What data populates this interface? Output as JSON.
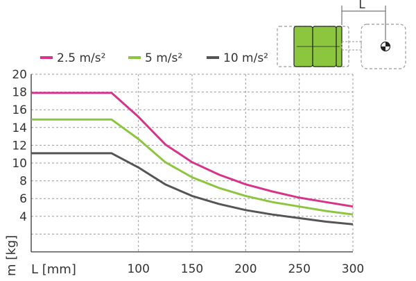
{
  "chart_data": {
    "type": "line",
    "title": "",
    "xlabel": "L [mm]",
    "ylabel": "m [kg]",
    "xlim": [
      0,
      300
    ],
    "ylim": [
      0,
      20
    ],
    "x_ticks": [
      100,
      150,
      200,
      250,
      300
    ],
    "y_ticks": [
      4,
      6,
      8,
      10,
      12,
      14,
      16,
      18,
      20
    ],
    "grid": true,
    "legend_position": "top-left",
    "series": [
      {
        "name": "2.5 m/s²",
        "color": "#d6338a",
        "x": [
          0,
          75,
          100,
          125,
          150,
          175,
          200,
          225,
          250,
          275,
          300
        ],
        "y": [
          17.9,
          17.9,
          15.2,
          12.1,
          10.1,
          8.7,
          7.6,
          6.8,
          6.1,
          5.6,
          5.1
        ]
      },
      {
        "name": "5 m/s²",
        "color": "#8cc63f",
        "x": [
          0,
          75,
          100,
          125,
          150,
          175,
          200,
          225,
          250,
          275,
          300
        ],
        "y": [
          14.9,
          14.9,
          12.7,
          10.1,
          8.4,
          7.2,
          6.3,
          5.6,
          5.1,
          4.6,
          4.2
        ]
      },
      {
        "name": "10 m/s²",
        "color": "#555555",
        "x": [
          0,
          75,
          100,
          125,
          150,
          175,
          200,
          225,
          250,
          275,
          300
        ],
        "y": [
          11.1,
          11.1,
          9.5,
          7.6,
          6.3,
          5.4,
          4.7,
          4.2,
          3.8,
          3.4,
          3.1
        ]
      }
    ]
  },
  "diagram": {
    "dimension_label": "L",
    "body_color": "#8cc63f",
    "outline_color": "#999999"
  }
}
